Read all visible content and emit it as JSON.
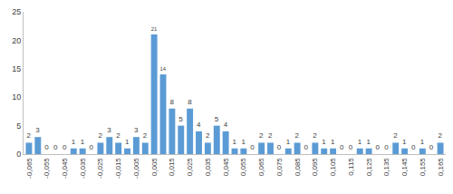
{
  "chart_data": {
    "type": "bar",
    "categories": [
      "-0,065",
      null,
      "-0,055",
      null,
      "-0,045",
      null,
      "-0,035",
      null,
      "-0,025",
      null,
      "-0,015",
      null,
      "-0,005",
      null,
      "0,005",
      null,
      "0,015",
      null,
      "0,025",
      null,
      "0,035",
      null,
      "0,045",
      null,
      "0,055",
      null,
      "0,065",
      null,
      "0,075",
      null,
      "0,085",
      null,
      "0,095",
      null,
      "0,105",
      null,
      "0,115",
      null,
      "0,125",
      null,
      "0,135",
      null,
      "0,145",
      null,
      "0,155",
      null,
      "0,165"
    ],
    "values": [
      2,
      3,
      0,
      0,
      0,
      1,
      1,
      0,
      2,
      3,
      2,
      1,
      3,
      2,
      21,
      14,
      8,
      5,
      8,
      4,
      2,
      5,
      4,
      1,
      1,
      0,
      2,
      2,
      0,
      1,
      2,
      0,
      2,
      1,
      1,
      0,
      0,
      1,
      1,
      0,
      0,
      2,
      1,
      0,
      1,
      0,
      2
    ],
    "color": "#5b9bd5",
    "ylim": [
      0,
      25
    ],
    "yticks": [
      0,
      5,
      10,
      15,
      20,
      25
    ],
    "grid": false,
    "data_labels": true
  }
}
